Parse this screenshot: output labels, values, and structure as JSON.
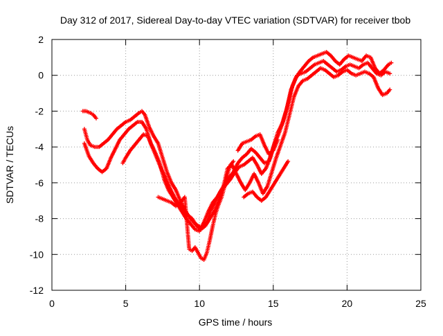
{
  "chart_data": {
    "type": "scatter",
    "title": "Day 312 of 2017, Sidereal Day-to-day VTEC variation (SDTVAR) for receiver tbob",
    "xlabel": "GPS time / hours",
    "ylabel": "SDTVAR / TECUs",
    "xlim": [
      0,
      25
    ],
    "ylim": [
      -12,
      2
    ],
    "xticks": [
      0,
      5,
      10,
      15,
      20,
      25
    ],
    "yticks": [
      -12,
      -10,
      -8,
      -6,
      -4,
      -2,
      0,
      2
    ],
    "grid": true,
    "marker": "+",
    "color": "#ff0000",
    "series": [
      {
        "points": [
          [
            2.1,
            -2.0
          ],
          [
            2.3,
            -2.0
          ],
          [
            2.6,
            -2.1
          ],
          [
            2.8,
            -2.2
          ],
          [
            3.0,
            -2.4
          ]
        ]
      },
      {
        "points": [
          [
            2.2,
            -3.0
          ],
          [
            2.4,
            -3.6
          ],
          [
            2.6,
            -3.9
          ],
          [
            2.9,
            -4.0
          ],
          [
            3.2,
            -4.0
          ],
          [
            3.5,
            -3.8
          ],
          [
            3.8,
            -3.6
          ],
          [
            4.1,
            -3.3
          ],
          [
            4.4,
            -3.0
          ],
          [
            4.7,
            -2.8
          ],
          [
            5.0,
            -2.6
          ],
          [
            5.3,
            -2.5
          ],
          [
            5.6,
            -2.3
          ],
          [
            5.9,
            -2.1
          ],
          [
            6.1,
            -2.0
          ],
          [
            6.3,
            -2.2
          ],
          [
            6.6,
            -2.9
          ],
          [
            6.9,
            -3.4
          ],
          [
            7.2,
            -3.8
          ],
          [
            7.5,
            -4.6
          ],
          [
            7.8,
            -5.4
          ],
          [
            8.1,
            -6.0
          ],
          [
            8.4,
            -6.4
          ],
          [
            8.7,
            -7.0
          ],
          [
            9.0,
            -7.5
          ],
          [
            9.3,
            -7.9
          ],
          [
            9.6,
            -8.2
          ],
          [
            9.9,
            -8.4
          ],
          [
            10.2,
            -8.5
          ],
          [
            10.5,
            -8.2
          ],
          [
            10.8,
            -7.5
          ],
          [
            11.1,
            -7.0
          ],
          [
            11.4,
            -6.5
          ],
          [
            11.7,
            -6.1
          ],
          [
            12.0,
            -5.7
          ],
          [
            12.3,
            -5.4
          ],
          [
            12.6,
            -4.9
          ],
          [
            12.9,
            -4.6
          ],
          [
            13.2,
            -4.4
          ],
          [
            13.5,
            -4.1
          ],
          [
            13.8,
            -4.3
          ],
          [
            14.1,
            -4.6
          ],
          [
            14.4,
            -4.9
          ],
          [
            14.7,
            -4.8
          ],
          [
            15.0,
            -4.0
          ],
          [
            15.3,
            -3.2
          ],
          [
            15.6,
            -2.7
          ],
          [
            15.9,
            -1.9
          ],
          [
            16.2,
            -0.8
          ],
          [
            16.5,
            -0.2
          ],
          [
            16.8,
            0.2
          ],
          [
            17.1,
            0.5
          ],
          [
            17.4,
            0.8
          ],
          [
            17.7,
            1.0
          ],
          [
            18.0,
            1.1
          ],
          [
            18.3,
            1.2
          ],
          [
            18.6,
            1.3
          ],
          [
            18.9,
            1.1
          ],
          [
            19.2,
            0.8
          ],
          [
            19.5,
            0.6
          ],
          [
            19.8,
            0.9
          ],
          [
            20.1,
            1.1
          ],
          [
            20.4,
            1.0
          ],
          [
            20.7,
            0.9
          ],
          [
            21.0,
            0.8
          ],
          [
            21.3,
            1.1
          ],
          [
            21.6,
            1.0
          ],
          [
            21.9,
            0.4
          ],
          [
            22.2,
            0.1
          ],
          [
            22.5,
            0.3
          ],
          [
            22.8,
            0.6
          ],
          [
            23.0,
            0.7
          ]
        ]
      },
      {
        "points": [
          [
            2.2,
            -3.8
          ],
          [
            2.5,
            -4.5
          ],
          [
            2.8,
            -4.9
          ],
          [
            3.1,
            -5.2
          ],
          [
            3.4,
            -5.4
          ],
          [
            3.7,
            -5.2
          ],
          [
            4.0,
            -4.6
          ],
          [
            4.3,
            -4.1
          ],
          [
            4.6,
            -3.6
          ],
          [
            4.9,
            -3.3
          ],
          [
            5.2,
            -3.0
          ],
          [
            5.5,
            -2.8
          ],
          [
            5.8,
            -2.6
          ],
          [
            6.1,
            -2.6
          ],
          [
            6.4,
            -3.0
          ],
          [
            6.7,
            -3.8
          ],
          [
            7.0,
            -4.3
          ],
          [
            7.3,
            -4.9
          ],
          [
            7.6,
            -5.8
          ],
          [
            7.9,
            -6.4
          ],
          [
            8.2,
            -6.8
          ],
          [
            8.5,
            -7.2
          ],
          [
            8.8,
            -7.6
          ],
          [
            9.1,
            -8.0
          ],
          [
            9.4,
            -8.3
          ],
          [
            9.7,
            -8.6
          ],
          [
            10.0,
            -8.7
          ],
          [
            10.3,
            -8.2
          ],
          [
            10.6,
            -7.6
          ],
          [
            10.9,
            -7.1
          ],
          [
            11.2,
            -6.8
          ],
          [
            11.5,
            -6.4
          ],
          [
            11.8,
            -6.1
          ],
          [
            12.1,
            -5.8
          ],
          [
            12.4,
            -5.4
          ],
          [
            12.7,
            -5.1
          ],
          [
            13.0,
            -5.0
          ],
          [
            13.3,
            -4.8
          ],
          [
            13.6,
            -4.6
          ],
          [
            13.9,
            -5.0
          ],
          [
            14.2,
            -5.5
          ],
          [
            14.5,
            -5.2
          ],
          [
            14.8,
            -4.6
          ],
          [
            15.1,
            -3.8
          ],
          [
            15.4,
            -3.2
          ],
          [
            15.7,
            -2.5
          ],
          [
            16.0,
            -1.6
          ],
          [
            16.3,
            -0.6
          ],
          [
            16.6,
            0.0
          ],
          [
            16.9,
            0.1
          ],
          [
            17.2,
            0.2
          ],
          [
            17.5,
            0.4
          ],
          [
            17.8,
            0.6
          ],
          [
            18.1,
            0.7
          ],
          [
            18.4,
            0.8
          ],
          [
            18.7,
            0.6
          ],
          [
            19.0,
            0.4
          ],
          [
            19.3,
            0.2
          ],
          [
            19.6,
            0.3
          ],
          [
            19.9,
            0.5
          ],
          [
            20.2,
            0.6
          ],
          [
            20.5,
            0.5
          ],
          [
            20.8,
            0.4
          ],
          [
            21.1,
            0.6
          ],
          [
            21.4,
            0.7
          ],
          [
            21.7,
            0.4
          ],
          [
            22.0,
            0.1
          ],
          [
            22.3,
            0.0
          ],
          [
            22.6,
            0.2
          ],
          [
            22.9,
            0.1
          ]
        ]
      },
      {
        "points": [
          [
            4.8,
            -4.9
          ],
          [
            5.0,
            -4.6
          ],
          [
            5.3,
            -4.2
          ],
          [
            5.6,
            -3.9
          ],
          [
            5.9,
            -3.6
          ],
          [
            6.2,
            -3.3
          ],
          [
            6.5,
            -3.4
          ],
          [
            6.8,
            -4.0
          ],
          [
            7.1,
            -4.6
          ],
          [
            7.4,
            -5.2
          ],
          [
            7.7,
            -5.7
          ],
          [
            8.0,
            -6.3
          ],
          [
            8.3,
            -6.8
          ],
          [
            8.6,
            -7.2
          ],
          [
            8.9,
            -7.6
          ],
          [
            9.2,
            -7.8
          ],
          [
            9.5,
            -8.0
          ],
          [
            9.8,
            -8.4
          ],
          [
            10.1,
            -8.6
          ],
          [
            10.4,
            -8.4
          ],
          [
            10.7,
            -8.0
          ],
          [
            11.0,
            -7.6
          ],
          [
            11.3,
            -7.0
          ],
          [
            11.6,
            -6.3
          ],
          [
            11.9,
            -5.2
          ],
          [
            12.2,
            -5.0
          ],
          [
            12.5,
            -5.5
          ],
          [
            12.8,
            -6.0
          ],
          [
            13.1,
            -6.4
          ],
          [
            13.4,
            -6.0
          ],
          [
            13.7,
            -5.5
          ],
          [
            14.0,
            -6.0
          ],
          [
            14.3,
            -6.6
          ],
          [
            14.6,
            -6.2
          ],
          [
            14.9,
            -5.4
          ],
          [
            15.2,
            -4.6
          ],
          [
            15.5,
            -3.9
          ],
          [
            15.8,
            -3.2
          ],
          [
            16.1,
            -2.2
          ],
          [
            16.4,
            -1.2
          ],
          [
            16.7,
            -0.6
          ],
          [
            17.0,
            -0.3
          ],
          [
            17.3,
            -0.2
          ],
          [
            17.6,
            0.0
          ],
          [
            17.9,
            0.2
          ],
          [
            18.2,
            0.4
          ],
          [
            18.5,
            0.3
          ],
          [
            18.8,
            0.1
          ],
          [
            19.1,
            -0.1
          ],
          [
            19.4,
            0.0
          ],
          [
            19.7,
            0.2
          ],
          [
            20.0,
            0.3
          ],
          [
            20.3,
            0.1
          ],
          [
            20.6,
            0.0
          ],
          [
            20.9,
            0.1
          ],
          [
            21.2,
            0.2
          ],
          [
            21.5,
            0.1
          ],
          [
            21.8,
            -0.1
          ],
          [
            22.1,
            -0.7
          ],
          [
            22.4,
            -1.1
          ],
          [
            22.7,
            -1.0
          ],
          [
            22.9,
            -0.8
          ]
        ]
      },
      {
        "points": [
          [
            7.2,
            -6.8
          ],
          [
            7.5,
            -6.9
          ],
          [
            7.8,
            -7.0
          ],
          [
            8.1,
            -7.1
          ],
          [
            8.4,
            -7.3
          ],
          [
            8.7,
            -7.1
          ],
          [
            9.0,
            -6.8
          ],
          [
            9.3,
            -9.7
          ],
          [
            9.5,
            -9.8
          ],
          [
            9.7,
            -9.6
          ],
          [
            9.9,
            -9.9
          ],
          [
            10.1,
            -10.2
          ],
          [
            10.3,
            -10.3
          ],
          [
            10.5,
            -9.9
          ],
          [
            10.7,
            -9.2
          ],
          [
            10.9,
            -8.4
          ],
          [
            11.1,
            -7.7
          ],
          [
            11.3,
            -7.2
          ],
          [
            11.5,
            -6.8
          ],
          [
            11.7,
            -6.2
          ],
          [
            11.9,
            -5.5
          ],
          [
            12.1,
            -5.0
          ],
          [
            12.3,
            -4.8
          ]
        ]
      },
      {
        "points": [
          [
            12.6,
            -4.2
          ],
          [
            12.9,
            -3.8
          ],
          [
            13.2,
            -3.7
          ],
          [
            13.5,
            -3.6
          ],
          [
            13.8,
            -3.4
          ],
          [
            14.1,
            -3.3
          ],
          [
            14.4,
            -3.9
          ],
          [
            14.7,
            -4.4
          ],
          [
            15.0,
            -4.2
          ],
          [
            15.3,
            -3.6
          ]
        ]
      },
      {
        "points": [
          [
            13.0,
            -6.8
          ],
          [
            13.3,
            -6.6
          ],
          [
            13.6,
            -6.5
          ],
          [
            13.9,
            -6.8
          ],
          [
            14.2,
            -7.0
          ],
          [
            14.5,
            -6.8
          ],
          [
            14.8,
            -6.4
          ],
          [
            15.1,
            -6.0
          ],
          [
            15.4,
            -5.6
          ],
          [
            15.7,
            -5.2
          ],
          [
            16.0,
            -4.8
          ]
        ]
      }
    ]
  }
}
